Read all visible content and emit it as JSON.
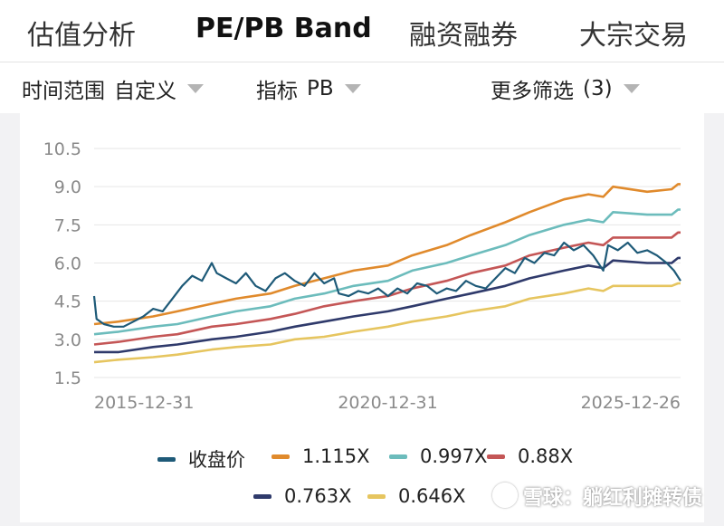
{
  "tabs": [
    {
      "label": "估值分析"
    },
    {
      "label": "PE/PB Band"
    },
    {
      "label": "融资融券"
    },
    {
      "label": "大宗交易"
    }
  ],
  "filters": {
    "time_label": "时间范围",
    "time_value": "自定义",
    "metric_label": "指标",
    "metric_value": "PB",
    "more_label": "更多筛选",
    "more_count": "(3)"
  },
  "watermark": "雪球：躺红利摊转债",
  "colors": {
    "close": "#1e5a78",
    "s1115": "#e08a2c",
    "s0997": "#6cbcbc",
    "s088": "#c45656",
    "s0763": "#2f3a6b",
    "s0646": "#e6c55f",
    "grid": "#e6e6e6",
    "tick": "#8a8a8a"
  },
  "chart_data": {
    "type": "line",
    "y_ticks": [
      "10.5",
      "9.0",
      "7.5",
      "6.0",
      "4.5",
      "3.0",
      "1.5"
    ],
    "x_ticks": [
      "2015-12-31",
      "2020-12-31",
      "2025-12-26"
    ],
    "ylim": [
      1.5,
      10.5
    ],
    "xlim": [
      "2015-12-31",
      "2025-12-26"
    ],
    "grid": true,
    "legend_position": "bottom",
    "series": [
      {
        "name": "收盘价",
        "key": "close",
        "points": [
          [
            "2015-12-31",
            4.7
          ],
          [
            "2016-01-15",
            3.8
          ],
          [
            "2016-03-01",
            3.6
          ],
          [
            "2016-05-01",
            3.5
          ],
          [
            "2016-07-01",
            3.5
          ],
          [
            "2016-09-01",
            3.7
          ],
          [
            "2016-11-01",
            3.9
          ],
          [
            "2017-01-01",
            4.2
          ],
          [
            "2017-03-01",
            4.1
          ],
          [
            "2017-05-01",
            4.6
          ],
          [
            "2017-07-01",
            5.1
          ],
          [
            "2017-09-01",
            5.5
          ],
          [
            "2017-11-01",
            5.3
          ],
          [
            "2018-01-01",
            6.0
          ],
          [
            "2018-02-01",
            5.6
          ],
          [
            "2018-04-01",
            5.4
          ],
          [
            "2018-06-01",
            5.2
          ],
          [
            "2018-08-01",
            5.6
          ],
          [
            "2018-10-01",
            5.1
          ],
          [
            "2018-12-01",
            4.9
          ],
          [
            "2019-02-01",
            5.4
          ],
          [
            "2019-04-01",
            5.6
          ],
          [
            "2019-06-01",
            5.3
          ],
          [
            "2019-08-01",
            5.1
          ],
          [
            "2019-10-01",
            5.6
          ],
          [
            "2019-12-01",
            5.2
          ],
          [
            "2020-02-01",
            5.4
          ],
          [
            "2020-03-01",
            4.8
          ],
          [
            "2020-05-01",
            4.7
          ],
          [
            "2020-07-01",
            4.9
          ],
          [
            "2020-09-01",
            4.8
          ],
          [
            "2020-11-01",
            5.0
          ],
          [
            "2021-01-01",
            4.7
          ],
          [
            "2021-03-01",
            5.0
          ],
          [
            "2021-05-01",
            4.8
          ],
          [
            "2021-07-01",
            5.2
          ],
          [
            "2021-09-01",
            5.1
          ],
          [
            "2021-11-01",
            4.8
          ],
          [
            "2022-01-01",
            5.0
          ],
          [
            "2022-03-01",
            4.9
          ],
          [
            "2022-05-01",
            5.3
          ],
          [
            "2022-07-01",
            5.1
          ],
          [
            "2022-09-01",
            5.0
          ],
          [
            "2022-11-01",
            5.4
          ],
          [
            "2023-01-01",
            5.8
          ],
          [
            "2023-03-01",
            5.6
          ],
          [
            "2023-05-01",
            6.2
          ],
          [
            "2023-07-01",
            6.0
          ],
          [
            "2023-09-01",
            6.4
          ],
          [
            "2023-11-01",
            6.3
          ],
          [
            "2024-01-01",
            6.8
          ],
          [
            "2024-03-01",
            6.5
          ],
          [
            "2024-05-01",
            6.7
          ],
          [
            "2024-07-01",
            6.3
          ],
          [
            "2024-09-01",
            5.7
          ],
          [
            "2024-10-01",
            6.7
          ],
          [
            "2024-12-01",
            6.5
          ],
          [
            "2025-02-01",
            6.8
          ],
          [
            "2025-04-01",
            6.4
          ],
          [
            "2025-06-01",
            6.5
          ],
          [
            "2025-08-01",
            6.3
          ],
          [
            "2025-10-01",
            6.0
          ],
          [
            "2025-11-15",
            5.7
          ],
          [
            "2025-12-26",
            5.3
          ]
        ]
      },
      {
        "name": "1.115X",
        "key": "s1115",
        "points": [
          [
            "2015-12-31",
            3.6
          ],
          [
            "2016-06-01",
            3.7
          ],
          [
            "2017-01-01",
            3.9
          ],
          [
            "2017-06-01",
            4.1
          ],
          [
            "2018-01-01",
            4.4
          ],
          [
            "2018-06-01",
            4.6
          ],
          [
            "2019-01-01",
            4.8
          ],
          [
            "2019-06-01",
            5.1
          ],
          [
            "2019-12-01",
            5.4
          ],
          [
            "2020-06-01",
            5.7
          ],
          [
            "2021-01-01",
            5.9
          ],
          [
            "2021-06-01",
            6.3
          ],
          [
            "2022-01-01",
            6.7
          ],
          [
            "2022-06-01",
            7.1
          ],
          [
            "2023-01-01",
            7.6
          ],
          [
            "2023-06-01",
            8.0
          ],
          [
            "2024-01-01",
            8.5
          ],
          [
            "2024-06-01",
            8.7
          ],
          [
            "2024-09-01",
            8.6
          ],
          [
            "2024-11-01",
            9.0
          ],
          [
            "2025-06-01",
            8.8
          ],
          [
            "2025-11-01",
            8.9
          ],
          [
            "2025-12-10",
            9.1
          ],
          [
            "2025-12-26",
            9.1
          ]
        ]
      },
      {
        "name": "0.997X",
        "key": "s0997",
        "points": [
          [
            "2015-12-31",
            3.2
          ],
          [
            "2016-06-01",
            3.3
          ],
          [
            "2017-01-01",
            3.5
          ],
          [
            "2017-06-01",
            3.6
          ],
          [
            "2018-01-01",
            3.9
          ],
          [
            "2018-06-01",
            4.1
          ],
          [
            "2019-01-01",
            4.3
          ],
          [
            "2019-06-01",
            4.6
          ],
          [
            "2019-12-01",
            4.8
          ],
          [
            "2020-06-01",
            5.1
          ],
          [
            "2021-01-01",
            5.3
          ],
          [
            "2021-06-01",
            5.7
          ],
          [
            "2022-01-01",
            6.0
          ],
          [
            "2022-06-01",
            6.3
          ],
          [
            "2023-01-01",
            6.7
          ],
          [
            "2023-06-01",
            7.1
          ],
          [
            "2024-01-01",
            7.5
          ],
          [
            "2024-06-01",
            7.7
          ],
          [
            "2024-09-01",
            7.6
          ],
          [
            "2024-11-01",
            8.0
          ],
          [
            "2025-06-01",
            7.9
          ],
          [
            "2025-11-01",
            7.9
          ],
          [
            "2025-12-10",
            8.1
          ],
          [
            "2025-12-26",
            8.1
          ]
        ]
      },
      {
        "name": "0.88X",
        "key": "s088",
        "points": [
          [
            "2015-12-31",
            2.8
          ],
          [
            "2016-06-01",
            2.9
          ],
          [
            "2017-01-01",
            3.1
          ],
          [
            "2017-06-01",
            3.2
          ],
          [
            "2018-01-01",
            3.5
          ],
          [
            "2018-06-01",
            3.6
          ],
          [
            "2019-01-01",
            3.8
          ],
          [
            "2019-06-01",
            4.0
          ],
          [
            "2019-12-01",
            4.3
          ],
          [
            "2020-06-01",
            4.5
          ],
          [
            "2021-01-01",
            4.7
          ],
          [
            "2021-06-01",
            5.0
          ],
          [
            "2022-01-01",
            5.3
          ],
          [
            "2022-06-01",
            5.6
          ],
          [
            "2023-01-01",
            5.9
          ],
          [
            "2023-06-01",
            6.3
          ],
          [
            "2024-01-01",
            6.6
          ],
          [
            "2024-06-01",
            6.8
          ],
          [
            "2024-09-01",
            6.7
          ],
          [
            "2024-11-01",
            7.0
          ],
          [
            "2025-06-01",
            7.0
          ],
          [
            "2025-11-01",
            7.0
          ],
          [
            "2025-12-10",
            7.2
          ],
          [
            "2025-12-26",
            7.2
          ]
        ]
      },
      {
        "name": "0.763X",
        "key": "s0763",
        "points": [
          [
            "2015-12-31",
            2.5
          ],
          [
            "2016-06-01",
            2.5
          ],
          [
            "2017-01-01",
            2.7
          ],
          [
            "2017-06-01",
            2.8
          ],
          [
            "2018-01-01",
            3.0
          ],
          [
            "2018-06-01",
            3.1
          ],
          [
            "2019-01-01",
            3.3
          ],
          [
            "2019-06-01",
            3.5
          ],
          [
            "2019-12-01",
            3.7
          ],
          [
            "2020-06-01",
            3.9
          ],
          [
            "2021-01-01",
            4.1
          ],
          [
            "2021-06-01",
            4.3
          ],
          [
            "2022-01-01",
            4.6
          ],
          [
            "2022-06-01",
            4.8
          ],
          [
            "2023-01-01",
            5.1
          ],
          [
            "2023-06-01",
            5.4
          ],
          [
            "2024-01-01",
            5.7
          ],
          [
            "2024-06-01",
            5.9
          ],
          [
            "2024-09-01",
            5.8
          ],
          [
            "2024-11-01",
            6.1
          ],
          [
            "2025-06-01",
            6.0
          ],
          [
            "2025-11-01",
            6.0
          ],
          [
            "2025-12-10",
            6.2
          ],
          [
            "2025-12-26",
            6.2
          ]
        ]
      },
      {
        "name": "0.646X",
        "key": "s0646",
        "points": [
          [
            "2015-12-31",
            2.1
          ],
          [
            "2016-06-01",
            2.2
          ],
          [
            "2017-01-01",
            2.3
          ],
          [
            "2017-06-01",
            2.4
          ],
          [
            "2018-01-01",
            2.6
          ],
          [
            "2018-06-01",
            2.7
          ],
          [
            "2019-01-01",
            2.8
          ],
          [
            "2019-06-01",
            3.0
          ],
          [
            "2019-12-01",
            3.1
          ],
          [
            "2020-06-01",
            3.3
          ],
          [
            "2021-01-01",
            3.5
          ],
          [
            "2021-06-01",
            3.7
          ],
          [
            "2022-01-01",
            3.9
          ],
          [
            "2022-06-01",
            4.1
          ],
          [
            "2023-01-01",
            4.3
          ],
          [
            "2023-06-01",
            4.6
          ],
          [
            "2024-01-01",
            4.8
          ],
          [
            "2024-06-01",
            5.0
          ],
          [
            "2024-09-01",
            4.9
          ],
          [
            "2024-11-01",
            5.1
          ],
          [
            "2025-06-01",
            5.1
          ],
          [
            "2025-11-01",
            5.1
          ],
          [
            "2025-12-10",
            5.2
          ],
          [
            "2025-12-26",
            5.2
          ]
        ]
      }
    ]
  }
}
